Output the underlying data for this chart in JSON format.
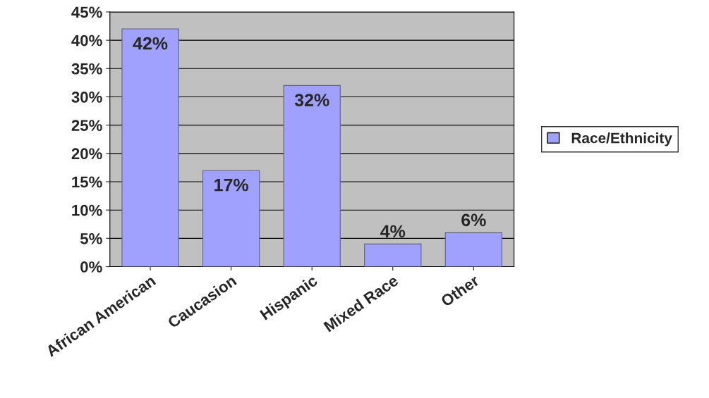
{
  "chart_data": {
    "type": "bar",
    "categories": [
      "African American",
      "Caucasion",
      "Hispanic",
      "Mixed Race",
      "Other"
    ],
    "series": [
      {
        "name": "Race/Ethnicity",
        "color": "#a0a0ff",
        "values": [
          42,
          17,
          32,
          4,
          6
        ],
        "value_labels": [
          "42%",
          "17%",
          "32%",
          "4%",
          "6%"
        ]
      }
    ],
    "ylim": [
      0,
      45
    ],
    "yticks": [
      {
        "value": 0,
        "label": "0%"
      },
      {
        "value": 5,
        "label": "5%"
      },
      {
        "value": 10,
        "label": "10%"
      },
      {
        "value": 15,
        "label": "15%"
      },
      {
        "value": 20,
        "label": "20%"
      },
      {
        "value": 25,
        "label": "25%"
      },
      {
        "value": 30,
        "label": "30%"
      },
      {
        "value": 35,
        "label": "35%"
      },
      {
        "value": 40,
        "label": "40%"
      },
      {
        "value": 45,
        "label": "45%"
      }
    ],
    "grid": "y",
    "legend": "right"
  }
}
